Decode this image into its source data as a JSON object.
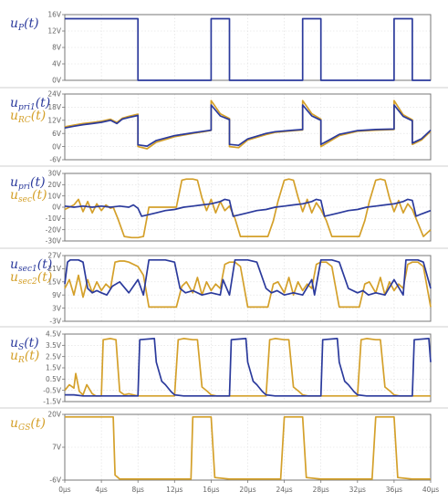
{
  "colors": {
    "blue": "#2b3a9c",
    "orange": "#d4a02a",
    "axis": "#777777",
    "grid": "#dddddd",
    "sep": "#cfcfcf"
  },
  "chart_data": [
    {
      "type": "line",
      "label_lines": [
        [
          "u",
          "P",
          "(t)"
        ]
      ],
      "ylim": [
        0,
        16
      ],
      "yticks": [
        "16V",
        "12V",
        "8V",
        "4V",
        "0V"
      ],
      "series": [
        {
          "color_key": "blue",
          "x": [
            0,
            0,
            8,
            8,
            16,
            16,
            18,
            18,
            26,
            26,
            28,
            28,
            36,
            36,
            38,
            38,
            40
          ],
          "y": [
            15,
            15,
            15,
            0,
            0,
            15,
            15,
            0,
            0,
            15,
            15,
            0,
            0,
            15,
            15,
            0,
            0
          ]
        }
      ]
    },
    {
      "type": "line",
      "label_lines": [
        [
          "u",
          "pri1",
          "(t)"
        ],
        [
          "u",
          "RC",
          "(t)"
        ]
      ],
      "ylim": [
        -6,
        24
      ],
      "yticks": [
        "24V",
        "18V",
        "12V",
        "6V",
        "0V",
        "-6V"
      ],
      "series": [
        {
          "color_key": "orange",
          "x": [
            0,
            1,
            2,
            3,
            4,
            5,
            5.7,
            6.3,
            7,
            8,
            8,
            9,
            10,
            12,
            14,
            15.5,
            16,
            16,
            17,
            18,
            18,
            19,
            20,
            22,
            23,
            25,
            26,
            26,
            27,
            28,
            28,
            29,
            30,
            32,
            34,
            36,
            36,
            37,
            38,
            38,
            39,
            40
          ],
          "y": [
            9,
            9.8,
            10.5,
            11,
            11.6,
            12.5,
            11,
            13,
            13.8,
            14.8,
            0,
            -1,
            2,
            4.5,
            6,
            7,
            7.4,
            21,
            15,
            12.8,
            0,
            -0.5,
            3,
            5.5,
            6.5,
            7.3,
            7.6,
            21,
            15,
            12.5,
            0,
            2.5,
            5,
            7,
            7.5,
            7.8,
            21,
            14.5,
            12.2,
            1,
            3,
            7
          ]
        },
        {
          "color_key": "blue",
          "x": [
            0,
            1,
            2,
            3,
            4,
            5,
            5.7,
            6.3,
            7,
            8,
            8,
            9,
            10,
            12,
            14,
            15.5,
            16,
            16,
            17,
            18,
            18,
            19,
            20,
            22,
            23,
            25,
            26,
            26,
            27,
            28,
            28,
            29,
            30,
            32,
            34,
            36,
            36,
            37,
            38,
            38,
            39,
            40
          ],
          "y": [
            8.5,
            9.3,
            10,
            10.5,
            11.1,
            12,
            10.5,
            12.6,
            13.3,
            14.2,
            0.8,
            0.2,
            2.8,
            5,
            6.3,
            7.2,
            7.5,
            19,
            14,
            12.3,
            1,
            0.6,
            3.5,
            6,
            6.8,
            7.5,
            7.8,
            19,
            14,
            12,
            1,
            3.2,
            5.6,
            7.3,
            7.8,
            8,
            19,
            13.8,
            11.8,
            1.6,
            3.6,
            7.5
          ]
        }
      ]
    },
    {
      "type": "line",
      "label_lines": [
        [
          "u",
          "pri",
          "(t)"
        ],
        [
          "u",
          "sec",
          "(t)"
        ]
      ],
      "ylim": [
        -30,
        30
      ],
      "yticks": [
        "30V",
        "20V",
        "10V",
        "0V",
        "-10V",
        "-20V",
        "-30V"
      ],
      "series": [
        {
          "color_key": "orange",
          "x": [
            0,
            1,
            1.5,
            2,
            2.5,
            3,
            3.5,
            4,
            4.5,
            5,
            5.3,
            5.8,
            6.5,
            7.3,
            8,
            8.6,
            9.2,
            12.2,
            12.8,
            13.3,
            14,
            14.5,
            15,
            15.5,
            16,
            16.5,
            17,
            17.5,
            18,
            18.6,
            19.2,
            22.2,
            22.8,
            23.3,
            24,
            24.5,
            25,
            25.5,
            26,
            26.5,
            27,
            27.5,
            28,
            28.6,
            29.2,
            32.2,
            32.8,
            33.3,
            34,
            34.5,
            35,
            35.5,
            36,
            36.5,
            37,
            37.5,
            38,
            38.6,
            39.2,
            40
          ],
          "y": [
            -2,
            2,
            7,
            -4,
            5,
            -5,
            3,
            -3,
            2,
            -1,
            0,
            -10,
            -26,
            -27,
            -27,
            -26,
            0,
            0,
            24,
            25,
            25,
            24,
            8,
            -3,
            7,
            -5,
            5,
            -3,
            1,
            -10,
            -26,
            -26,
            -12,
            5,
            24,
            25,
            24,
            9,
            -4,
            7,
            -5,
            4,
            -2,
            -12,
            -26,
            -26,
            -12,
            5,
            24,
            25,
            24,
            8,
            -4,
            6,
            -5,
            3,
            -2,
            -14,
            -26,
            -20
          ]
        },
        {
          "color_key": "blue",
          "x": [
            0,
            1,
            2,
            3,
            4,
            5,
            6,
            7,
            7.5,
            8,
            8.4,
            9,
            10,
            11,
            12,
            13,
            14,
            15,
            16,
            17,
            17.5,
            18,
            18.4,
            19,
            20,
            21,
            22,
            23,
            24,
            25,
            26,
            27,
            27.5,
            28,
            28.4,
            29,
            30,
            31,
            32,
            33,
            34,
            35,
            36,
            37,
            37.5,
            38,
            38.4,
            39,
            40
          ],
          "y": [
            1,
            0,
            1,
            0,
            1,
            0,
            1,
            0,
            2,
            -1,
            -8,
            -7,
            -5,
            -3,
            -2,
            0,
            1,
            2,
            3,
            5,
            7,
            6,
            -8,
            -7,
            -5,
            -3,
            -2,
            0,
            1,
            2,
            3,
            5,
            7,
            6,
            -8,
            -7,
            -5,
            -3,
            -2,
            0,
            1,
            2,
            3,
            5,
            7,
            6,
            -8,
            -6,
            -3
          ]
        }
      ]
    },
    {
      "type": "line",
      "label_lines": [
        [
          "u",
          "sec1",
          "(t)"
        ],
        [
          "u",
          "sec2",
          "(t)"
        ]
      ],
      "ylim": [
        -3,
        27
      ],
      "yticks": [
        "27V",
        "21V",
        "15V",
        "9V",
        "3V",
        "-3V"
      ],
      "series": [
        {
          "color_key": "orange",
          "x": [
            0,
            0.5,
            1,
            1.5,
            2,
            2.5,
            3,
            3.5,
            4,
            4.5,
            5,
            5.5,
            6,
            6.5,
            7,
            8,
            8.6,
            9.2,
            10,
            11,
            12,
            12.2,
            12.8,
            13.3,
            14,
            14.5,
            15,
            15.5,
            16,
            16.5,
            17,
            17.5,
            18,
            18.6,
            19.2,
            20,
            22.2,
            22.8,
            23.3,
            24,
            24.5,
            25,
            25.5,
            26,
            26.5,
            27,
            27.5,
            28,
            28.6,
            29.2,
            30,
            32.2,
            32.8,
            33.3,
            34,
            34.5,
            35,
            35.5,
            36,
            36.5,
            37,
            37.5,
            38,
            38.6,
            39.2,
            40
          ],
          "y": [
            12,
            16,
            9,
            18,
            8,
            16,
            10,
            15,
            11,
            14,
            12,
            24,
            24.5,
            24.5,
            24,
            22,
            18,
            3.5,
            3.5,
            3.5,
            3.5,
            3.5,
            13,
            15,
            10,
            17,
            9,
            15,
            11,
            14,
            12,
            23,
            24,
            24,
            22,
            3.5,
            3.5,
            14,
            15,
            10,
            17,
            9,
            15,
            11,
            14,
            12,
            23,
            24,
            24,
            22,
            3.5,
            3.5,
            14,
            15,
            10,
            17,
            9,
            15,
            11,
            14,
            12,
            23,
            24,
            24,
            22,
            3.5
          ]
        },
        {
          "color_key": "blue",
          "x": [
            0,
            0.3,
            0.6,
            1,
            1.5,
            2,
            2.5,
            3,
            3.5,
            4,
            4.6,
            5.2,
            6,
            7,
            8,
            8.6,
            9.2,
            10,
            11,
            12,
            12.6,
            13.2,
            14,
            15,
            16,
            17,
            17.3,
            18,
            18.6,
            19.2,
            20,
            21,
            22,
            22.6,
            23.2,
            24,
            25,
            26,
            27,
            27.3,
            28,
            28.6,
            29.2,
            30,
            31,
            32,
            32.6,
            33.2,
            34,
            35,
            36,
            37,
            37.3,
            38,
            38.6,
            39.2,
            40
          ],
          "y": [
            14,
            24,
            25,
            25,
            25,
            24,
            12,
            10,
            11,
            10,
            9,
            13,
            15,
            10,
            16,
            9,
            25,
            25,
            25,
            24,
            12,
            10,
            11,
            9,
            10,
            9,
            16,
            9,
            25,
            25,
            25,
            24,
            12,
            10,
            11,
            9,
            10,
            9,
            16,
            9,
            25,
            25,
            25,
            24,
            12,
            10,
            11,
            9,
            10,
            9,
            16,
            9,
            25,
            25,
            25,
            24,
            12
          ]
        }
      ]
    },
    {
      "type": "line",
      "label_lines": [
        [
          "u",
          "S",
          "(t)"
        ],
        [
          "u",
          "R",
          "(t)"
        ]
      ],
      "ylim": [
        -1.5,
        4.5
      ],
      "yticks": [
        "4.5V",
        "3.5V",
        "2.5V",
        "1.5V",
        "0.5V",
        "-0.5V",
        "-1.5V"
      ],
      "series": [
        {
          "color_key": "orange",
          "x": [
            0,
            0.5,
            1,
            1.2,
            1.6,
            2,
            2.4,
            3,
            3.4,
            4,
            4.2,
            5,
            5.6,
            6,
            6.5,
            7,
            8,
            12,
            12.4,
            13,
            14,
            14.5,
            15,
            15.6,
            16,
            16.6,
            17,
            18,
            22,
            22.4,
            23,
            24,
            24.5,
            25,
            25.6,
            26,
            26.6,
            27,
            28,
            32,
            32.4,
            33,
            34,
            34.5,
            35,
            35.6,
            36,
            36.6,
            37,
            38,
            40
          ],
          "y": [
            -0.5,
            0,
            -0.3,
            1,
            -0.6,
            -0.9,
            0,
            -0.8,
            -1,
            -1,
            4,
            4.1,
            4,
            -0.6,
            -0.9,
            -0.8,
            -1,
            -1,
            4,
            4.1,
            4,
            4,
            -0.2,
            -0.6,
            -0.9,
            -1,
            -1,
            -1,
            -1,
            4,
            4.1,
            4,
            4,
            -0.2,
            -0.6,
            -0.9,
            -1,
            -1,
            -1,
            -1,
            4,
            4.1,
            4,
            4,
            -0.2,
            -0.6,
            -0.9,
            -1,
            -1,
            -1,
            -1
          ]
        },
        {
          "color_key": "blue",
          "x": [
            0,
            1,
            2,
            3,
            4,
            5,
            6,
            8,
            8.2,
            9.8,
            10,
            10.6,
            11,
            11.6,
            12,
            13,
            14,
            16,
            18,
            18.2,
            19.8,
            20,
            20.6,
            21,
            21.6,
            22,
            23,
            24,
            26,
            28,
            28.2,
            29.8,
            30,
            30.6,
            31,
            31.6,
            32,
            33,
            34,
            36,
            38,
            38.2,
            39.8,
            40
          ],
          "y": [
            -0.9,
            -0.9,
            -1,
            -1,
            -1,
            -1,
            -1,
            -1,
            4,
            4.1,
            2,
            0.3,
            0,
            -0.6,
            -0.9,
            -1,
            -1,
            -1,
            -1,
            4,
            4.1,
            2,
            0.3,
            0,
            -0.6,
            -0.9,
            -1,
            -1,
            -1,
            -1,
            4,
            4.1,
            2,
            0.3,
            0,
            -0.6,
            -0.9,
            -1,
            -1,
            -1,
            -1,
            4,
            4.1,
            2
          ]
        }
      ]
    },
    {
      "type": "line",
      "label_lines": [
        [
          "u",
          "GS",
          "(t)"
        ]
      ],
      "ylim": [
        -6,
        20
      ],
      "yticks": [
        "20V",
        "7V",
        "-6V"
      ],
      "xticks": [
        "0µs",
        "4µs",
        "8µs",
        "12µs",
        "16µs",
        "20µs",
        "24µs",
        "28µs",
        "32µs",
        "36µs",
        "40µs"
      ],
      "series": [
        {
          "color_key": "orange",
          "x": [
            0,
            5.3,
            5.5,
            6,
            8,
            10,
            12,
            13,
            13.8,
            14,
            14.5,
            16,
            16.4,
            18,
            20,
            22,
            23.6,
            24,
            25,
            26,
            26.4,
            28,
            30,
            32,
            33.6,
            34,
            35,
            36,
            36.4,
            38,
            40
          ],
          "y": [
            19,
            19,
            -4,
            -5.6,
            -5.6,
            -5.6,
            -5.6,
            -5.6,
            -5.6,
            19,
            19,
            19,
            -5,
            -5.6,
            -5.6,
            -5.6,
            -5.6,
            19,
            19,
            19,
            -5,
            -5.6,
            -5.6,
            -5.6,
            -5.6,
            19,
            19,
            19,
            -5,
            -5.6,
            -5.6
          ]
        }
      ]
    }
  ]
}
